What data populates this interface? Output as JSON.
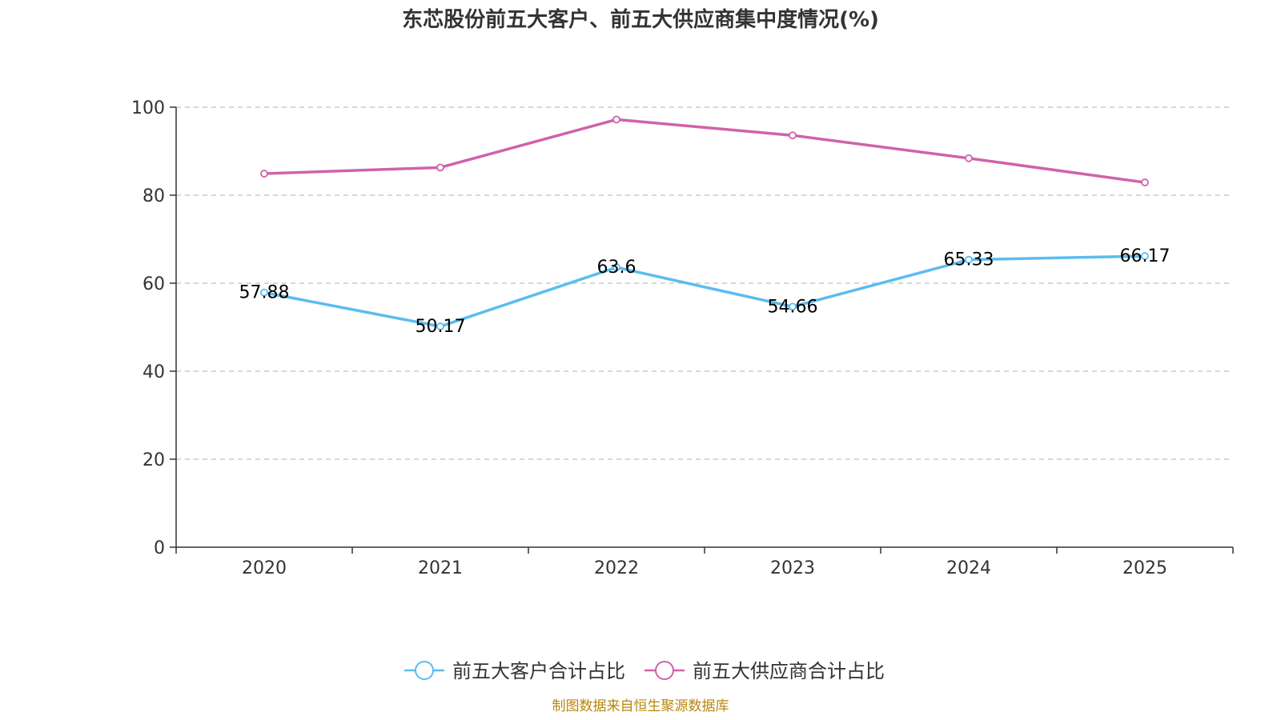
{
  "chart_data": {
    "type": "line",
    "title": "东芯股份前五大客户、前五大供应商集中度情况(%)",
    "categories": [
      "2020",
      "2021",
      "2022",
      "2023",
      "2024",
      "2025"
    ],
    "ylim": [
      0,
      100
    ],
    "yticks": [
      "0",
      "20",
      "40",
      "60",
      "80",
      "100"
    ],
    "grid": true,
    "legend_position": "bottom",
    "series": [
      {
        "name": "前五大客户合计占比",
        "color": "#5bbcf0",
        "values": [
          57.88,
          50.17,
          63.6,
          54.66,
          65.33,
          66.17
        ],
        "labels": [
          "57.88",
          "50.17",
          "63.6",
          "54.66",
          "65.33",
          "66.17"
        ]
      },
      {
        "name": "前五大供应商合计占比",
        "color": "#d062ab",
        "values": [
          84.9,
          86.3,
          97.2,
          93.6,
          88.4,
          82.9
        ]
      }
    ],
    "source": "制图数据来自恒生聚源数据库"
  }
}
